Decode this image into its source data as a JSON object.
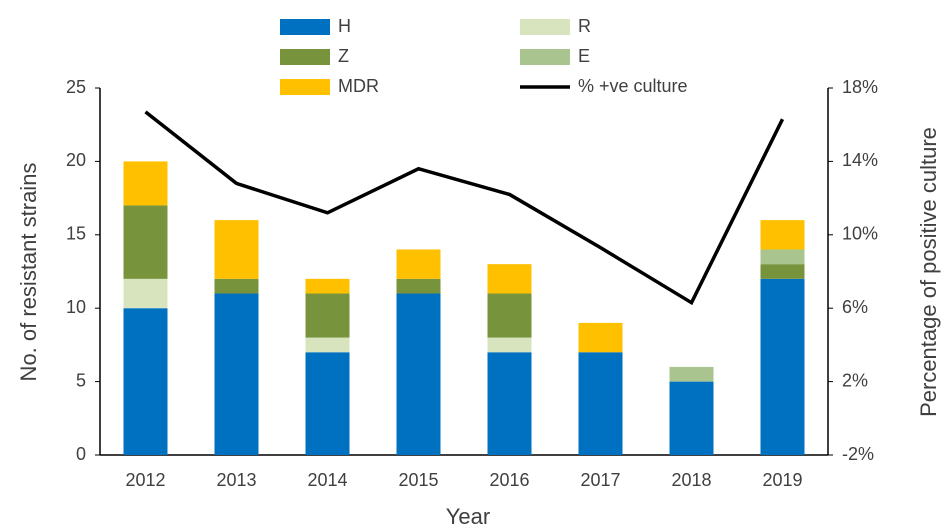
{
  "chart_data": {
    "type": "bar",
    "categories": [
      "2012",
      "2013",
      "2014",
      "2015",
      "2016",
      "2017",
      "2018",
      "2019"
    ],
    "series": [
      {
        "name": "H",
        "color": "#0070c0",
        "values": [
          10,
          11,
          7,
          11,
          7,
          7,
          5,
          12
        ]
      },
      {
        "name": "R",
        "color": "#d7e4bd",
        "values": [
          2,
          0,
          1,
          0,
          1,
          0,
          0,
          0
        ]
      },
      {
        "name": "Z",
        "color": "#77933c",
        "values": [
          5,
          1,
          3,
          1,
          3,
          0,
          0,
          1
        ]
      },
      {
        "name": "E",
        "color": "#a9c48f",
        "values": [
          0,
          0,
          0,
          0,
          0,
          0,
          1,
          1
        ]
      },
      {
        "name": "MDR",
        "color": "#ffc000",
        "values": [
          3,
          4,
          1,
          2,
          2,
          2,
          0,
          2
        ]
      },
      {
        "name": "% +ve culture",
        "type": "line",
        "axis": "y2",
        "color": "#000000",
        "values": [
          16.7,
          12.8,
          11.2,
          13.6,
          12.2,
          9.3,
          6.3,
          16.3
        ]
      }
    ],
    "stacked": true,
    "xlabel": "Year",
    "ylabel": "No. of resistant strains",
    "y2label": "Percentage of positive culture",
    "ylim": [
      0,
      25
    ],
    "yticks": [
      0,
      5,
      10,
      15,
      20,
      25
    ],
    "y2lim": [
      -2,
      18
    ],
    "y2ticks": [
      {
        "value": -2,
        "label": "-2%"
      },
      {
        "value": 2,
        "label": "2%"
      },
      {
        "value": 6,
        "label": "6%"
      },
      {
        "value": 10,
        "label": "10%"
      },
      {
        "value": 14,
        "label": "14%"
      },
      {
        "value": 18,
        "label": "18%"
      }
    ],
    "grid": false
  }
}
